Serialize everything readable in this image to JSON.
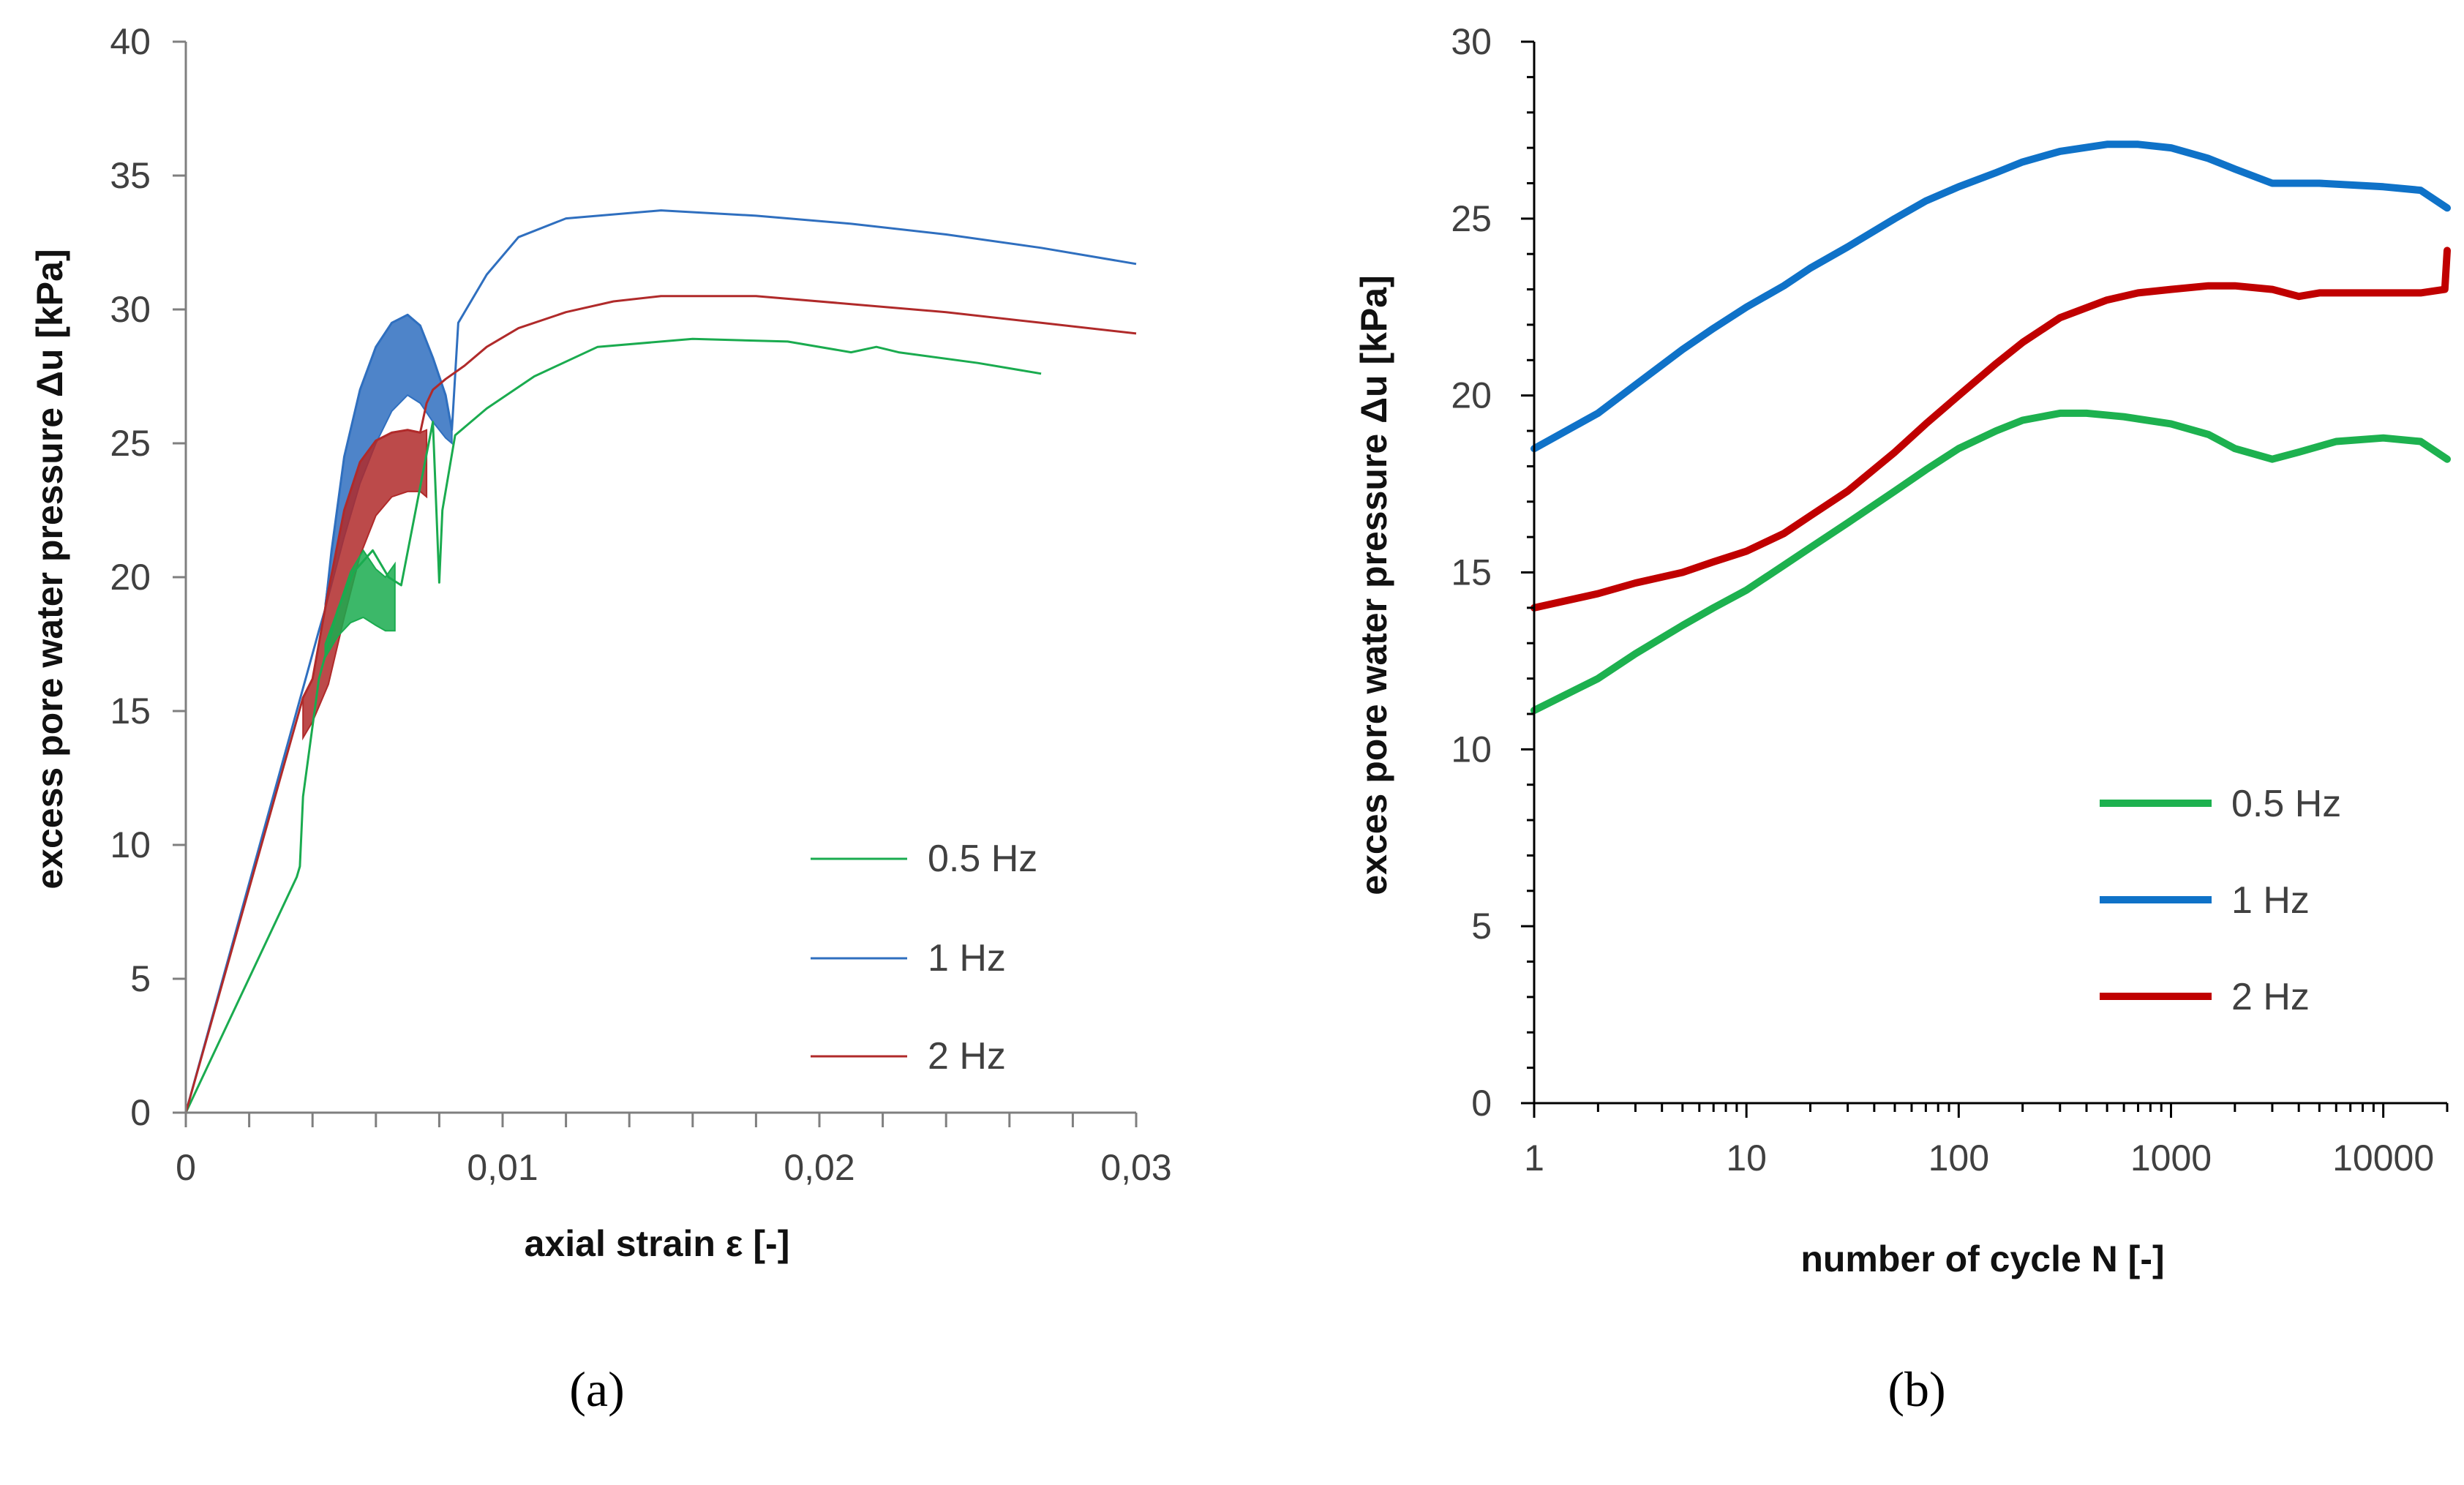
{
  "colors": {
    "green": "#1aab4f",
    "blue": "#2f6fbf",
    "red": "#b02a2a",
    "blue_b": "#0f72c8",
    "red_b": "#c00000",
    "green_b": "#1db14f"
  },
  "panel_a_label": "(a)",
  "panel_b_label": "(b)",
  "chart_data": [
    {
      "type": "line",
      "xlabel": "axial strain ε [-]",
      "ylabel": "excess pore water pressure Δu [kPa]",
      "xlim": [
        0,
        0.03
      ],
      "ylim": [
        0,
        40
      ],
      "xticks": [
        "0",
        "0,01",
        "0,02",
        "0,03"
      ],
      "yticks": [
        "0",
        "5",
        "10",
        "15",
        "20",
        "25",
        "30",
        "35",
        "40"
      ],
      "legend_position": "lower-right",
      "series": [
        {
          "name": "0.5 Hz",
          "color": "#1aab4f",
          "x": [
            0,
            0.0035,
            0.0036,
            0.0037,
            0.0042,
            0.0048,
            0.0053,
            0.0059,
            0.0064,
            0.0068,
            0.0075,
            0.0078,
            0.008,
            0.0081,
            0.0085,
            0.0095,
            0.011,
            0.013,
            0.016,
            0.019,
            0.021,
            0.0218,
            0.0225,
            0.025,
            0.027
          ],
          "y": [
            0,
            8.8,
            9.2,
            11.8,
            16.2,
            18.8,
            20.2,
            21.0,
            20.0,
            19.7,
            24.0,
            25.8,
            19.8,
            22.5,
            25.3,
            26.3,
            27.5,
            28.6,
            28.9,
            28.8,
            28.4,
            28.6,
            28.4,
            28.0,
            27.6
          ]
        },
        {
          "name": "1 Hz",
          "color": "#2f6fbf",
          "x": [
            0,
            0.0042,
            0.0044,
            0.0046,
            0.005,
            0.0055,
            0.006,
            0.0065,
            0.007,
            0.0074,
            0.0078,
            0.0082,
            0.0084,
            0.0086,
            0.009,
            0.0095,
            0.0105,
            0.012,
            0.015,
            0.018,
            0.021,
            0.024,
            0.027,
            0.03
          ],
          "y": [
            0,
            18.0,
            18.8,
            21.0,
            24.5,
            27.0,
            28.6,
            29.5,
            29.8,
            29.4,
            28.2,
            26.8,
            25.5,
            29.5,
            30.3,
            31.3,
            32.7,
            33.4,
            33.7,
            33.5,
            33.2,
            32.8,
            32.3,
            31.7
          ]
        },
        {
          "name": "2 Hz",
          "color": "#b02a2a",
          "x": [
            0,
            0.0037,
            0.004,
            0.0045,
            0.005,
            0.0055,
            0.006,
            0.0065,
            0.007,
            0.0074,
            0.0076,
            0.0078,
            0.0082,
            0.0088,
            0.0095,
            0.0105,
            0.012,
            0.0135,
            0.015,
            0.018,
            0.021,
            0.024,
            0.027,
            0.03
          ],
          "y": [
            0,
            15.5,
            16.2,
            19.5,
            22.5,
            24.3,
            25.1,
            25.4,
            25.5,
            25.4,
            26.5,
            27.0,
            27.4,
            27.9,
            28.6,
            29.3,
            29.9,
            30.3,
            30.5,
            30.5,
            30.2,
            29.9,
            29.5,
            29.1
          ]
        }
      ],
      "band_series": [
        {
          "name": "1 Hz",
          "x": [
            0.0044,
            0.005,
            0.0055,
            0.006,
            0.0065,
            0.007,
            0.0074,
            0.0078,
            0.0082,
            0.0084
          ],
          "y_low": [
            18.8,
            21.5,
            23.5,
            25.0,
            26.2,
            26.8,
            26.5,
            25.8,
            25.2,
            25.0
          ],
          "y_high": [
            19.0,
            24.5,
            27.0,
            28.6,
            29.5,
            29.8,
            29.4,
            28.2,
            26.8,
            25.5
          ]
        },
        {
          "name": "2 Hz",
          "x": [
            0.0037,
            0.004,
            0.0045,
            0.005,
            0.0055,
            0.006,
            0.0065,
            0.007,
            0.0074,
            0.0076
          ],
          "y_low": [
            14.0,
            14.6,
            16.0,
            18.5,
            20.8,
            22.3,
            23.0,
            23.2,
            23.2,
            23.0
          ],
          "y_high": [
            15.5,
            16.2,
            19.5,
            22.5,
            24.3,
            25.1,
            25.4,
            25.5,
            25.4,
            25.5
          ]
        },
        {
          "name": "0.5 Hz",
          "x": [
            0.0044,
            0.0048,
            0.0052,
            0.0056,
            0.006,
            0.0063,
            0.0066
          ],
          "y_low": [
            17.0,
            17.8,
            18.3,
            18.5,
            18.2,
            18.0,
            18.0
          ],
          "y_high": [
            17.5,
            18.8,
            20.2,
            21.0,
            20.3,
            20.0,
            20.5
          ]
        }
      ]
    },
    {
      "type": "line",
      "xscale": "log",
      "xlabel": "number of cycle N [-]",
      "ylabel": "exces pore water pressure Δu [kPa]",
      "xlim": [
        1,
        20000
      ],
      "ylim": [
        0,
        30
      ],
      "xticks": [
        "1",
        "10",
        "100",
        "1000",
        "10000"
      ],
      "yticks": [
        "0",
        "5",
        "10",
        "15",
        "20",
        "25",
        "30"
      ],
      "legend_position": "lower-right",
      "series": [
        {
          "name": "0.5 Hz",
          "color": "#1db14f",
          "x": [
            1,
            2,
            3,
            5,
            7,
            10,
            15,
            20,
            30,
            50,
            70,
            100,
            150,
            200,
            300,
            400,
            600,
            1000,
            1500,
            2000,
            3000,
            4000,
            6000,
            10000,
            15000,
            20000
          ],
          "y": [
            11.1,
            12.0,
            12.7,
            13.5,
            14.0,
            14.5,
            15.2,
            15.7,
            16.4,
            17.3,
            17.9,
            18.5,
            19.0,
            19.3,
            19.5,
            19.5,
            19.4,
            19.2,
            18.9,
            18.5,
            18.2,
            18.4,
            18.7,
            18.8,
            18.7,
            18.2
          ]
        },
        {
          "name": "1 Hz",
          "color": "#0f72c8",
          "x": [
            1,
            2,
            3,
            5,
            7,
            10,
            15,
            20,
            30,
            50,
            70,
            100,
            150,
            200,
            300,
            500,
            700,
            1000,
            1500,
            2000,
            3000,
            5000,
            10000,
            15000,
            20000
          ],
          "y": [
            18.5,
            19.5,
            20.3,
            21.3,
            21.9,
            22.5,
            23.1,
            23.6,
            24.2,
            25.0,
            25.5,
            25.9,
            26.3,
            26.6,
            26.9,
            27.1,
            27.1,
            27.0,
            26.7,
            26.4,
            26.0,
            26.0,
            25.9,
            25.8,
            25.3
          ]
        },
        {
          "name": "2 Hz",
          "color": "#c00000",
          "x": [
            1,
            2,
            3,
            5,
            7,
            10,
            15,
            20,
            30,
            50,
            70,
            100,
            150,
            200,
            300,
            500,
            700,
            1000,
            1500,
            2000,
            3000,
            4000,
            5000,
            7000,
            10000,
            15000,
            19500,
            20000
          ],
          "y": [
            14.0,
            14.4,
            14.7,
            15.0,
            15.3,
            15.6,
            16.1,
            16.6,
            17.3,
            18.4,
            19.2,
            20.0,
            20.9,
            21.5,
            22.2,
            22.7,
            22.9,
            23.0,
            23.1,
            23.1,
            23.0,
            22.8,
            22.9,
            22.9,
            22.9,
            22.9,
            23.0,
            24.1
          ]
        }
      ]
    }
  ]
}
